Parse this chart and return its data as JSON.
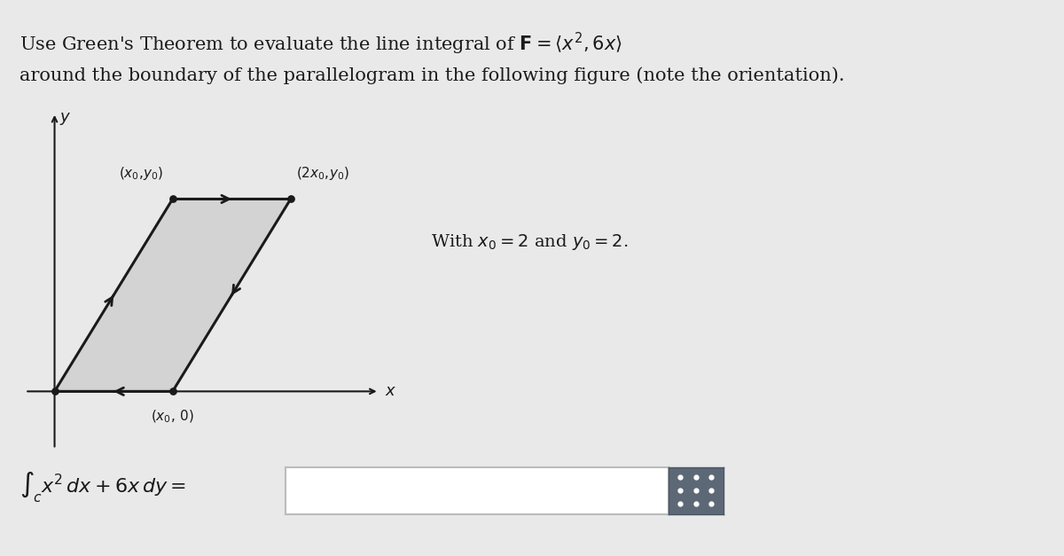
{
  "fig_bg_color": "#e9e9e9",
  "title_line1": "Use Green's Theorem to evaluate the line integral of $\\mathbf{F} = \\langle x^2, 6x\\rangle$",
  "title_line2": "around the boundary of the parallelogram in the following figure (note the orientation).",
  "with_text": "With $x_0 = 2$ and $y_0 = 2$.",
  "integral_label": "$\\int_c x^2\\,dx + 6x\\,dy =$",
  "parallelogram_fill": "#d3d3d3",
  "parallelogram_edge": "#1a1a1a",
  "axis_color": "#1a1a1a",
  "box_bg": "#ffffff",
  "box_border": "#cccccc",
  "btn_color": "#5d6876",
  "plot_box_bg": "#ffffff",
  "font_size_title": 15,
  "font_size_labels": 12
}
